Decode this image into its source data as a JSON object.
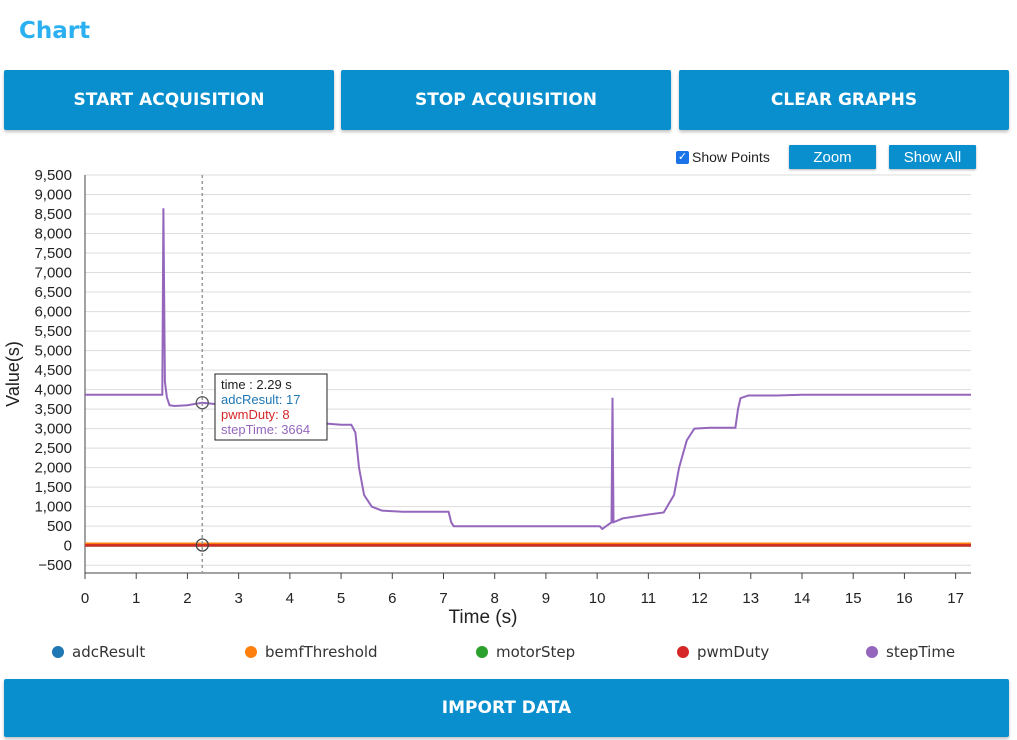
{
  "header": {
    "title": "Chart"
  },
  "toolbar": {
    "start_label": "START ACQUISITION",
    "stop_label": "STOP ACQUISITION",
    "clear_label": "CLEAR GRAPHS",
    "import_label": "IMPORT DATA"
  },
  "chart_controls": {
    "show_points_label": "Show Points",
    "show_points_checked": true,
    "zoom_label": "Zoom",
    "show_all_label": "Show All"
  },
  "tooltip": {
    "time": "time : 2.29 s",
    "adc": "adcResult: 17",
    "pwm": "pwmDuty: 8",
    "step": "stepTime: 3664"
  },
  "colors": {
    "adcResult": "#1f77b4",
    "bemfThreshold": "#ff7f0e",
    "motorStep": "#2ca02c",
    "pwmDuty": "#d62728",
    "stepTime": "#9467bd",
    "accent": "#0a8fce"
  },
  "legend": [
    {
      "name": "adcResult",
      "color": "#1f77b4"
    },
    {
      "name": "bemfThreshold",
      "color": "#ff7f0e"
    },
    {
      "name": "motorStep",
      "color": "#2ca02c"
    },
    {
      "name": "pwmDuty",
      "color": "#d62728"
    },
    {
      "name": "stepTime",
      "color": "#9467bd"
    }
  ],
  "chart_data": {
    "type": "line",
    "xlabel": "Time (s)",
    "ylabel": "Value(s)",
    "xlim": [
      0,
      17.3
    ],
    "ylim": [
      -700,
      9500
    ],
    "x_ticks": [
      0,
      1,
      2,
      3,
      4,
      5,
      6,
      7,
      8,
      9,
      10,
      11,
      12,
      13,
      14,
      15,
      16,
      17
    ],
    "y_ticks": [
      -500,
      0,
      500,
      1000,
      1500,
      2000,
      2500,
      3000,
      3500,
      4000,
      4500,
      5000,
      5500,
      6000,
      6500,
      7000,
      7500,
      8000,
      8500,
      9000,
      9500
    ],
    "y_tick_labels": [
      "−500",
      "0",
      "500",
      "1,000",
      "1,500",
      "2,000",
      "2,500",
      "3,000",
      "3,500",
      "4,000",
      "4,500",
      "5,000",
      "5,500",
      "6,000",
      "6,500",
      "7,000",
      "7,500",
      "8,000",
      "8,500",
      "9,000",
      "9,500"
    ],
    "grid": true,
    "legend_position": "bottom",
    "hover_x": 2.29,
    "series": [
      {
        "name": "adcResult",
        "x": [
          0,
          1.6,
          2.29,
          5,
          8,
          10,
          13.9,
          17.3
        ],
        "y": [
          20,
          20,
          17,
          20,
          40,
          30,
          10,
          10
        ]
      },
      {
        "name": "bemfThreshold",
        "x": [
          0,
          17.3
        ],
        "y": [
          50,
          50
        ]
      },
      {
        "name": "motorStep",
        "x": [
          0,
          17.3
        ],
        "y": [
          5,
          5
        ]
      },
      {
        "name": "pwmDuty",
        "x": [
          0,
          17.3
        ],
        "y": [
          8,
          8
        ]
      },
      {
        "name": "stepTime",
        "x": [
          0,
          1.51,
          1.53,
          1.56,
          1.6,
          1.65,
          1.75,
          2.0,
          2.29,
          2.6,
          3.0,
          4.0,
          5.0,
          5.2,
          5.28,
          5.35,
          5.45,
          5.6,
          5.8,
          6.2,
          7.1,
          7.15,
          7.2,
          7.5,
          8.0,
          8.5,
          9.0,
          9.5,
          10.05,
          10.1,
          10.28,
          10.3,
          10.32,
          10.5,
          11.0,
          11.3,
          11.5,
          11.6,
          11.75,
          11.9,
          12.2,
          12.7,
          12.75,
          12.8,
          12.95,
          13.5,
          14.0,
          17.3
        ],
        "y": [
          3870,
          3870,
          8650,
          4200,
          3800,
          3600,
          3580,
          3600,
          3664,
          3620,
          3300,
          3200,
          3100,
          3100,
          2900,
          2000,
          1300,
          1000,
          900,
          870,
          870,
          600,
          500,
          500,
          500,
          500,
          500,
          500,
          500,
          430,
          600,
          3790,
          600,
          700,
          800,
          850,
          1300,
          2000,
          2700,
          3000,
          3020,
          3020,
          3500,
          3780,
          3850,
          3850,
          3870,
          3870
        ]
      }
    ]
  }
}
